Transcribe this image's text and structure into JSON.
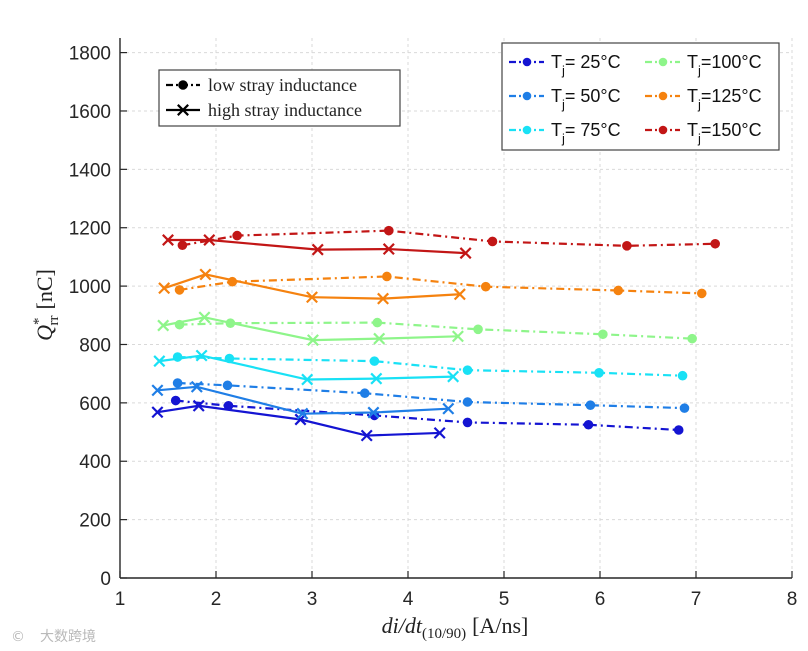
{
  "chart_data": {
    "type": "line",
    "xlabel": "di/dt",
    "xlabel_sub": "(10/90)",
    "xlabel_unit": "[A/ns]",
    "ylabel": "Q",
    "ylabel_sup": "*",
    "ylabel_sub": "rr",
    "ylabel_unit": "[nC]",
    "xlim": [
      1,
      8
    ],
    "ylim": [
      0,
      1850
    ],
    "xticks": [
      1,
      2,
      3,
      4,
      5,
      6,
      7,
      8
    ],
    "yticks": [
      0,
      200,
      400,
      600,
      800,
      1000,
      1200,
      1400,
      1600,
      1800
    ],
    "grid": true,
    "style_legend": [
      {
        "label": "low stray inductance",
        "style": "dashdot",
        "marker": "circle"
      },
      {
        "label": "high stray inductance",
        "style": "solid",
        "marker": "x"
      }
    ],
    "temp_legend": {
      "prefix": "T",
      "sub": "j",
      "entries": [
        {
          "label": "= 25°C",
          "color": "#1414d2"
        },
        {
          "label": "= 50°C",
          "color": "#1f7ee6"
        },
        {
          "label": "= 75°C",
          "color": "#19e1f5"
        },
        {
          "label": "=100°C",
          "color": "#8ef58a"
        },
        {
          "label": "=125°C",
          "color": "#f5820f"
        },
        {
          "label": "=150°C",
          "color": "#c21616"
        }
      ]
    },
    "series": [
      {
        "name": "T_j=25°C low stray inductance",
        "color": "#1414d2",
        "style": "dashdot",
        "marker": "circle",
        "x": [
          1.58,
          2.13,
          3.65,
          4.62,
          5.88,
          6.82
        ],
        "y": [
          608,
          590,
          557,
          533,
          525,
          507
        ]
      },
      {
        "name": "T_j=25°C high stray inductance",
        "color": "#1414d2",
        "style": "solid",
        "marker": "x",
        "x": [
          1.39,
          1.82,
          2.88,
          3.57,
          4.33
        ],
        "y": [
          568,
          590,
          543,
          488,
          497
        ]
      },
      {
        "name": "T_j=50°C low stray inductance",
        "color": "#1f7ee6",
        "style": "dashdot",
        "marker": "circle",
        "x": [
          1.6,
          2.12,
          3.55,
          4.62,
          5.9,
          6.88
        ],
        "y": [
          668,
          660,
          633,
          603,
          592,
          582
        ]
      },
      {
        "name": "T_j=50°C high stray inductance",
        "color": "#1f7ee6",
        "style": "solid",
        "marker": "x",
        "x": [
          1.39,
          1.8,
          2.9,
          3.64,
          4.42
        ],
        "y": [
          643,
          655,
          563,
          567,
          580
        ]
      },
      {
        "name": "T_j=75°C low stray inductance",
        "color": "#19e1f5",
        "style": "dashdot",
        "marker": "circle",
        "x": [
          1.6,
          2.14,
          3.65,
          4.62,
          5.99,
          6.86
        ],
        "y": [
          757,
          752,
          743,
          712,
          703,
          693
        ]
      },
      {
        "name": "T_j=75°C high stray inductance",
        "color": "#19e1f5",
        "style": "solid",
        "marker": "x",
        "x": [
          1.41,
          1.85,
          2.95,
          3.67,
          4.47
        ],
        "y": [
          743,
          762,
          680,
          683,
          690
        ]
      },
      {
        "name": "T_j=100°C low stray inductance",
        "color": "#8ef58a",
        "style": "dashdot",
        "marker": "circle",
        "x": [
          1.62,
          2.15,
          3.68,
          4.73,
          6.03,
          6.96
        ],
        "y": [
          868,
          873,
          875,
          852,
          835,
          820
        ]
      },
      {
        "name": "T_j=100°C high stray inductance",
        "color": "#8ef58a",
        "style": "solid",
        "marker": "x",
        "x": [
          1.45,
          1.88,
          3.01,
          3.7,
          4.52
        ],
        "y": [
          865,
          893,
          815,
          820,
          828
        ]
      },
      {
        "name": "T_j=125°C low stray inductance",
        "color": "#f5820f",
        "style": "dashdot",
        "marker": "circle",
        "x": [
          1.62,
          2.17,
          3.78,
          4.81,
          6.19,
          7.06
        ],
        "y": [
          987,
          1015,
          1033,
          998,
          985,
          975
        ]
      },
      {
        "name": "T_j=125°C high stray inductance",
        "color": "#f5820f",
        "style": "solid",
        "marker": "x",
        "x": [
          1.46,
          1.89,
          3.0,
          3.74,
          4.54
        ],
        "y": [
          993,
          1040,
          962,
          957,
          972
        ]
      },
      {
        "name": "T_j=150°C low stray inductance",
        "color": "#c21616",
        "style": "dashdot",
        "marker": "circle",
        "x": [
          1.65,
          2.22,
          3.8,
          4.88,
          6.28,
          7.2
        ],
        "y": [
          1140,
          1173,
          1190,
          1153,
          1138,
          1145
        ]
      },
      {
        "name": "T_j=150°C high stray inductance",
        "color": "#c21616",
        "style": "solid",
        "marker": "x",
        "x": [
          1.5,
          1.93,
          3.06,
          3.8,
          4.6
        ],
        "y": [
          1158,
          1158,
          1125,
          1127,
          1113
        ]
      }
    ]
  },
  "watermark": "大数跨境"
}
